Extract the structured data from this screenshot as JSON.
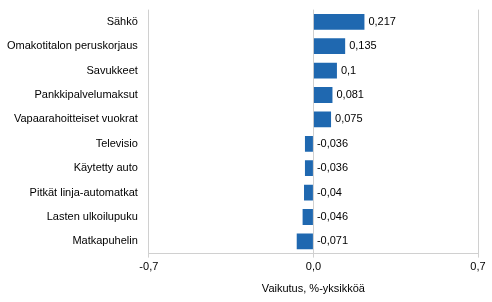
{
  "chart_data": {
    "type": "bar",
    "orientation": "horizontal",
    "categories": [
      "Sähkö",
      "Omakotitalon peruskorjaus",
      "Savukkeet",
      "Pankkipalvelumaksut",
      "Vapaarahoitteiset vuokrat",
      "Televisio",
      "Käytetty auto",
      "Pitkät linja-automatkat",
      "Lasten ulkoilupuku",
      "Matkapuhelin"
    ],
    "values": [
      0.217,
      0.135,
      0.1,
      0.081,
      0.075,
      -0.036,
      -0.036,
      -0.04,
      -0.046,
      -0.071
    ],
    "value_labels": [
      "0,217",
      "0,135",
      "0,1",
      "0,081",
      "0,075",
      "-0,036",
      "-0,036",
      "-0,04",
      "-0,046",
      "-0,071"
    ],
    "data_labels": true,
    "color": "#1f68b0",
    "x_label": "Vaikutus, %-yksikköä",
    "xlim": [
      -0.7,
      0.7
    ],
    "xticks": [
      {
        "value": -0.7,
        "label": "-0,7"
      },
      {
        "value": 0,
        "label": "0,0"
      },
      {
        "value": 0.7,
        "label": "0,7"
      }
    ],
    "grid": true
  }
}
